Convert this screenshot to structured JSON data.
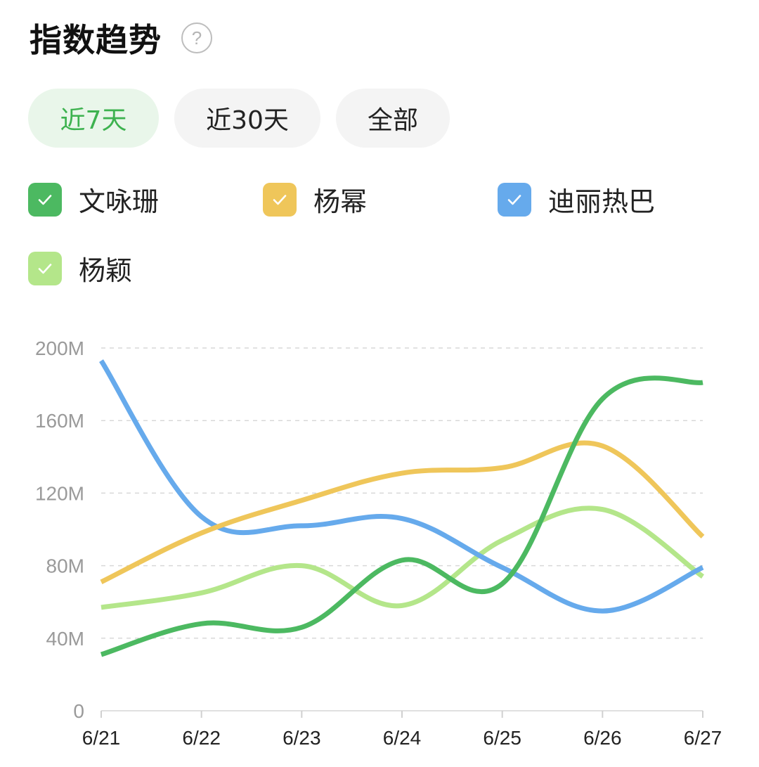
{
  "header": {
    "title": "指数趋势",
    "help_icon": "question-circle-icon",
    "help_glyph": "?"
  },
  "tabs": [
    {
      "label": "近7天",
      "active": true
    },
    {
      "label": "近30天",
      "active": false
    },
    {
      "label": "全部",
      "active": false
    }
  ],
  "colors": {
    "accent": "#3db24f",
    "active_tab_bg": "#e9f6ea",
    "tab_bg": "#f4f4f4",
    "grid": "#d8d8d8",
    "axis_text": "#9a9a9a",
    "x_axis_text": "#222222"
  },
  "legend": [
    {
      "label": "文咏珊",
      "color": "#4cb961",
      "checked": true,
      "icon": "check-icon"
    },
    {
      "label": "杨幂",
      "color": "#efc65a",
      "checked": true,
      "icon": "check-icon"
    },
    {
      "label": "迪丽热巴",
      "color": "#66aaec",
      "checked": true,
      "icon": "check-icon"
    },
    {
      "label": "杨颖",
      "color": "#b4e68a",
      "checked": true,
      "icon": "check-icon"
    }
  ],
  "chart_data": {
    "type": "line",
    "title": "",
    "xlabel": "",
    "ylabel": "",
    "categories": [
      "6/21",
      "6/22",
      "6/23",
      "6/24",
      "6/25",
      "6/26",
      "6/27"
    ],
    "ylim": [
      0,
      200
    ],
    "yticks": [
      "0",
      "40M",
      "80M",
      "120M",
      "160M",
      "200M"
    ],
    "ytick_values": [
      0,
      40,
      80,
      120,
      160,
      200
    ],
    "unit": "M",
    "grid": true,
    "smooth": true,
    "series": [
      {
        "name": "文咏珊",
        "color": "#4cb961",
        "values": [
          31,
          48,
          46,
          83,
          70,
          172,
          181
        ]
      },
      {
        "name": "杨幂",
        "color": "#efc65a",
        "values": [
          71,
          98,
          116,
          131,
          134,
          146,
          96
        ]
      },
      {
        "name": "迪丽热巴",
        "color": "#66aaec",
        "values": [
          193,
          107,
          102,
          106,
          79,
          55,
          79
        ]
      },
      {
        "name": "杨颖",
        "color": "#b4e68a",
        "values": [
          57,
          65,
          80,
          58,
          94,
          111,
          74
        ]
      }
    ]
  }
}
